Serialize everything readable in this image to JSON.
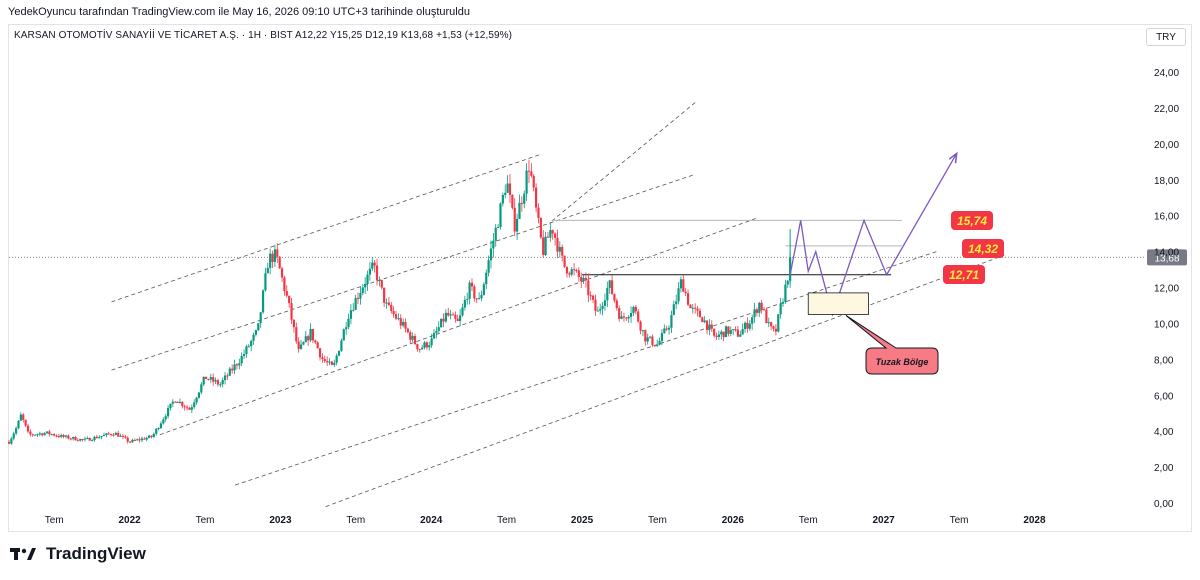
{
  "header": {
    "caption": "YedekOyuncu tarafından TradingView.com ile May 16, 2026 09:10 UTC+3 tarihinde oluşturuldu",
    "symbol_line": "KARSAN OTOMOTİV SANAYİİ VE TİCARET A.Ş. · 1H · BIST  A12,22  Y15,25  D12,19  K13,68  +1,53 (+12,59%)",
    "currency": "TRY"
  },
  "brand": {
    "name": "TradingView"
  },
  "colors": {
    "up": "#089981",
    "down": "#f23645",
    "wave": "#7e57c2",
    "level_box": "#f23645",
    "channel": "#555555",
    "price_tag": "#787b86"
  },
  "chart_data": {
    "type": "candlestick",
    "symbol": "KARSAN",
    "interval": "1H",
    "exchange": "BIST",
    "ohlc": {
      "open": 12.22,
      "high": 15.25,
      "low": 12.19,
      "close": 13.68,
      "change": 1.53,
      "change_pct": 12.59
    },
    "last_price_label": "13,68",
    "last_price": 13.68,
    "ylim": [
      0,
      25
    ],
    "y_ticks": [
      {
        "v": 24,
        "label": "24,00"
      },
      {
        "v": 22,
        "label": "22,00"
      },
      {
        "v": 20,
        "label": "20,00"
      },
      {
        "v": 18,
        "label": "18,00"
      },
      {
        "v": 16,
        "label": "16,00"
      },
      {
        "v": 14,
        "label": "14,00"
      },
      {
        "v": 12,
        "label": "12,00"
      },
      {
        "v": 10,
        "label": "10,00"
      },
      {
        "v": 8,
        "label": "8,00"
      },
      {
        "v": 6,
        "label": "6,00"
      },
      {
        "v": 4,
        "label": "4,00"
      },
      {
        "v": 2,
        "label": "2,00"
      },
      {
        "v": 0,
        "label": "0,00"
      }
    ],
    "xlim": [
      2021.2,
      2028.7
    ],
    "x_ticks": [
      {
        "t": 2021.5,
        "label": "Tem",
        "bold": false
      },
      {
        "t": 2022.0,
        "label": "2022",
        "bold": true
      },
      {
        "t": 2022.5,
        "label": "Tem",
        "bold": false
      },
      {
        "t": 2023.0,
        "label": "2023",
        "bold": true
      },
      {
        "t": 2023.5,
        "label": "Tem",
        "bold": false
      },
      {
        "t": 2024.0,
        "label": "2024",
        "bold": true
      },
      {
        "t": 2024.5,
        "label": "Tem",
        "bold": false
      },
      {
        "t": 2025.0,
        "label": "2025",
        "bold": true
      },
      {
        "t": 2025.5,
        "label": "Tem",
        "bold": false
      },
      {
        "t": 2026.0,
        "label": "2026",
        "bold": true
      },
      {
        "t": 2026.5,
        "label": "Tem",
        "bold": false
      },
      {
        "t": 2027.0,
        "label": "2027",
        "bold": true
      },
      {
        "t": 2027.5,
        "label": "Tem",
        "bold": false
      },
      {
        "t": 2028.0,
        "label": "2028",
        "bold": true
      }
    ],
    "price_path": [
      [
        2021.2,
        3.4
      ],
      [
        2021.25,
        4.2
      ],
      [
        2021.28,
        4.9
      ],
      [
        2021.33,
        3.8
      ],
      [
        2021.45,
        3.9
      ],
      [
        2021.55,
        3.7
      ],
      [
        2021.7,
        3.5
      ],
      [
        2021.9,
        3.9
      ],
      [
        2022.0,
        3.4
      ],
      [
        2022.15,
        3.7
      ],
      [
        2022.3,
        5.8
      ],
      [
        2022.4,
        5.2
      ],
      [
        2022.5,
        7.0
      ],
      [
        2022.6,
        6.6
      ],
      [
        2022.75,
        8.2
      ],
      [
        2022.85,
        9.6
      ],
      [
        2022.92,
        13.6
      ],
      [
        2022.97,
        13.8
      ],
      [
        2023.05,
        11.2
      ],
      [
        2023.12,
        8.4
      ],
      [
        2023.2,
        9.5
      ],
      [
        2023.28,
        8.0
      ],
      [
        2023.35,
        7.5
      ],
      [
        2023.45,
        10.5
      ],
      [
        2023.55,
        12.2
      ],
      [
        2023.62,
        13.2
      ],
      [
        2023.7,
        11.0
      ],
      [
        2023.8,
        10.0
      ],
      [
        2023.92,
        8.6
      ],
      [
        2024.0,
        9.0
      ],
      [
        2024.1,
        10.5
      ],
      [
        2024.18,
        10.0
      ],
      [
        2024.25,
        12.0
      ],
      [
        2024.32,
        11.2
      ],
      [
        2024.38,
        13.5
      ],
      [
        2024.45,
        16.0
      ],
      [
        2024.5,
        18.0
      ],
      [
        2024.55,
        15.4
      ],
      [
        2024.6,
        17.0
      ],
      [
        2024.65,
        18.9
      ],
      [
        2024.7,
        16.0
      ],
      [
        2024.74,
        14.0
      ],
      [
        2024.8,
        15.4
      ],
      [
        2024.88,
        13.2
      ],
      [
        2024.95,
        12.8
      ],
      [
        2025.02,
        12.2
      ],
      [
        2025.1,
        10.5
      ],
      [
        2025.18,
        12.2
      ],
      [
        2025.26,
        10.2
      ],
      [
        2025.34,
        10.9
      ],
      [
        2025.42,
        9.2
      ],
      [
        2025.5,
        8.8
      ],
      [
        2025.58,
        10.0
      ],
      [
        2025.66,
        12.4
      ],
      [
        2025.72,
        10.8
      ],
      [
        2025.8,
        10.3
      ],
      [
        2025.88,
        9.2
      ],
      [
        2025.96,
        9.6
      ],
      [
        2026.04,
        9.4
      ],
      [
        2026.12,
        10.2
      ],
      [
        2026.18,
        11.2
      ],
      [
        2026.24,
        9.8
      ],
      [
        2026.28,
        9.4
      ],
      [
        2026.32,
        11.0
      ],
      [
        2026.36,
        12.4
      ],
      [
        2026.38,
        13.68
      ]
    ],
    "channels": [
      {
        "x1": 2021.88,
        "y1": 11.2,
        "x2": 2024.72,
        "y2": 19.4
      },
      {
        "x1": 2024.8,
        "y1": 15.7,
        "x2": 2025.75,
        "y2": 22.3
      },
      {
        "x1": 2021.88,
        "y1": 7.4,
        "x2": 2025.75,
        "y2": 18.3
      },
      {
        "x1": 2022.2,
        "y1": 3.8,
        "x2": 2026.17,
        "y2": 15.9
      },
      {
        "x1": 2022.7,
        "y1": 1.0,
        "x2": 2027.35,
        "y2": 14.0
      },
      {
        "x1": 2023.3,
        "y1": -0.2,
        "x2": 2027.8,
        "y2": 13.8
      }
    ],
    "h_lines": [
      {
        "x1": 2024.8,
        "x2": 2027.12,
        "y": 15.74,
        "color": "#b2b5be"
      },
      {
        "x1": 2026.35,
        "x2": 2027.12,
        "y": 14.32,
        "color": "#b2b5be"
      },
      {
        "x1": 2025.0,
        "x2": 2027.05,
        "y": 12.71,
        "color": "#131722"
      }
    ],
    "wave_path": [
      [
        2026.38,
        12.71
      ],
      [
        2026.45,
        15.74
      ],
      [
        2026.5,
        12.9
      ],
      [
        2026.55,
        14.0
      ],
      [
        2026.66,
        10.5
      ],
      [
        2026.87,
        15.74
      ],
      [
        2027.02,
        12.71
      ],
      [
        2027.48,
        19.4
      ]
    ],
    "levels": [
      {
        "value": 15.74,
        "label": "15,74"
      },
      {
        "value": 14.32,
        "label": "14,32"
      },
      {
        "value": 12.71,
        "label": "12,71"
      }
    ],
    "trap_zone": {
      "label": "Tuzak Bölge",
      "x1": 2026.5,
      "x2": 2026.9,
      "y1": 10.5,
      "y2": 11.7
    }
  }
}
